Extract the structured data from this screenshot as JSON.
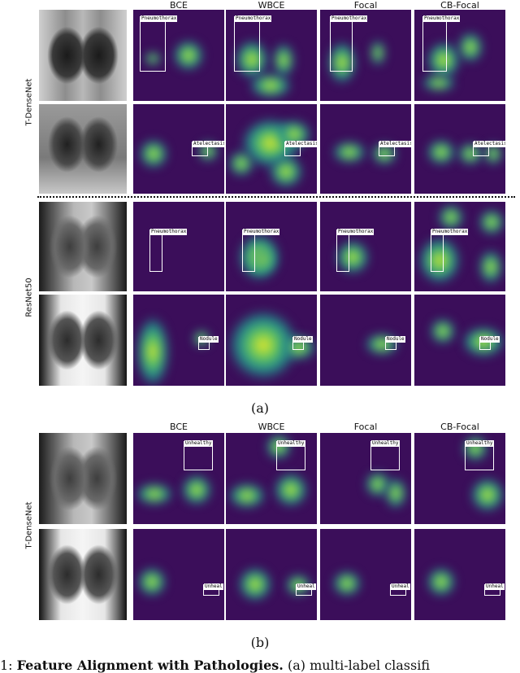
{
  "panel_a": {
    "columns": [
      "BCE",
      "WBCE",
      "Focal",
      "CB-Focal"
    ],
    "groups": [
      {
        "label": "T-DenseNet",
        "rows": [
          {
            "tag": "Pneumothorax",
            "cells": [
              "Pneumothorax",
              "Pneumothorax",
              "Pneumothorax",
              "Pneumothorax"
            ]
          },
          {
            "tag": "Atelectasis",
            "cells": [
              "Atelectasis",
              "Atelectasis",
              "Atelectasis",
              "Atelectasis"
            ]
          }
        ]
      },
      {
        "label": "ResNet50",
        "rows": [
          {
            "tag": "Pneumothorax",
            "cells": [
              "Pneumothorax",
              "Pneumothorax",
              "Pneumothorax",
              "Pneumothorax"
            ]
          },
          {
            "tag": "Nodule",
            "cells": [
              "Nodule",
              "Nodule",
              "Nodule",
              "Nodule"
            ]
          }
        ]
      }
    ],
    "sublabel": "(a)"
  },
  "panel_b": {
    "columns": [
      "BCE",
      "WBCE",
      "Focal",
      "CB-Focal"
    ],
    "group_label": "T-DenseNet",
    "rows": [
      {
        "cells": [
          "Unhealthy",
          "Unhealthy",
          "Unhealthy",
          "Unhealthy"
        ]
      },
      {
        "cells": [
          "Unheal",
          "Unheal",
          "Unheal",
          "Unheal"
        ]
      }
    ],
    "sublabel": "(b)"
  },
  "caption": {
    "prefix": "1: ",
    "bold": "Feature Alignment with Pathologies.",
    "rest": " (a) multi-label classifi"
  },
  "colors": {
    "heat_bg": "#3b0e5a",
    "heat_mid": "#21908d",
    "heat_hot": "#fde725",
    "box": "#ffffff"
  }
}
